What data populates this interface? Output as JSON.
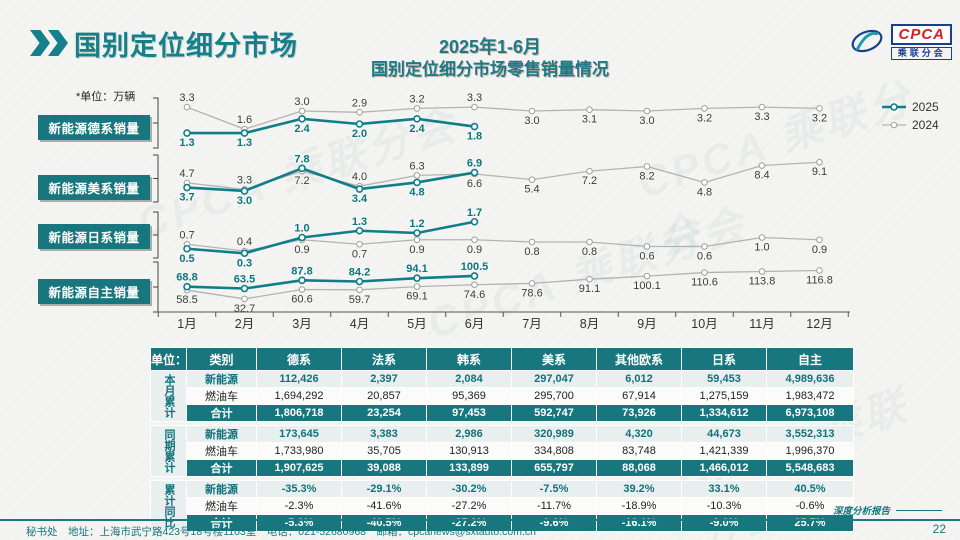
{
  "header": {
    "title": "国别定位细分市场",
    "subtitle_line1": "2025年1-6月",
    "subtitle_line2": "国别定位细分市场零售销量情况",
    "logo": {
      "cpca": "CPCA",
      "sub": "乘联分会"
    }
  },
  "unit_note": "*单位：万辆",
  "watermark": "CPCA 乘联分会",
  "legend": {
    "s2025": "2025",
    "s2024": "2024"
  },
  "colors": {
    "teal": "#17767e",
    "teal_line": "#0f7e88",
    "teal_label": "#0d7680",
    "gray_line": "#b3b3b3",
    "gray_label": "#3c3c3c",
    "axis": "#555555",
    "header_yellow": "#ffd34d"
  },
  "chart_data": {
    "type": "line",
    "x_labels": [
      "1月",
      "2月",
      "3月",
      "4月",
      "5月",
      "6月",
      "7月",
      "8月",
      "9月",
      "10月",
      "11月",
      "12月"
    ],
    "legend": [
      "2025",
      "2024"
    ],
    "rows": [
      {
        "label": "新能源德系销量",
        "ylim": [
          0,
          4
        ],
        "series": [
          {
            "name": "2025",
            "values": [
              1.3,
              1.3,
              2.4,
              2.0,
              2.4,
              1.8
            ]
          },
          {
            "name": "2024",
            "values": [
              3.3,
              1.6,
              3.0,
              2.9,
              3.2,
              3.3,
              3.0,
              3.1,
              3.0,
              3.2,
              3.3,
              3.2
            ]
          }
        ]
      },
      {
        "label": "新能源美系销量",
        "ylim": [
          0,
          10
        ],
        "series": [
          {
            "name": "2025",
            "values": [
              3.7,
              3.0,
              7.8,
              3.4,
              4.8,
              6.9
            ]
          },
          {
            "name": "2024",
            "values": [
              4.7,
              3.3,
              7.2,
              4.0,
              6.3,
              6.6,
              5.4,
              7.2,
              8.2,
              4.8,
              8.4,
              9.1
            ]
          }
        ]
      },
      {
        "label": "新能源日系销量",
        "ylim": [
          0,
          2
        ],
        "series": [
          {
            "name": "2025",
            "values": [
              0.5,
              0.3,
              1.0,
              1.3,
              1.2,
              1.7
            ]
          },
          {
            "name": "2024",
            "values": [
              0.7,
              0.4,
              0.9,
              0.7,
              0.9,
              0.9,
              0.8,
              0.8,
              0.6,
              0.6,
              1.0,
              0.9
            ]
          }
        ]
      },
      {
        "label": "新能源自主销量",
        "ylim": [
          0,
          130
        ],
        "series": [
          {
            "name": "2025",
            "values": [
              68.8,
              63.5,
              87.8,
              84.2,
              94.1,
              100.5
            ]
          },
          {
            "name": "2024",
            "values": [
              58.5,
              32.7,
              60.6,
              59.7,
              69.1,
              74.6,
              78.6,
              91.1,
              100.1,
              110.6,
              113.8,
              116.8
            ]
          }
        ]
      }
    ]
  },
  "table": {
    "unit_header": "单位：辆",
    "category_header": "类别",
    "columns": [
      "德系",
      "法系",
      "韩系",
      "美系",
      "其他欧系",
      "日系",
      "自主"
    ],
    "groups": [
      {
        "label": "本月累计",
        "rows": [
          {
            "name": "新能源",
            "type": "nev",
            "values": [
              "112,426",
              "2,397",
              "2,084",
              "297,047",
              "6,012",
              "59,453",
              "4,989,636"
            ]
          },
          {
            "name": "燃油车",
            "type": "ice",
            "values": [
              "1,694,292",
              "20,857",
              "95,369",
              "295,700",
              "67,914",
              "1,275,159",
              "1,983,472"
            ]
          },
          {
            "name": "合计",
            "type": "total",
            "values": [
              "1,806,718",
              "23,254",
              "97,453",
              "592,747",
              "73,926",
              "1,334,612",
              "6,973,108"
            ]
          }
        ]
      },
      {
        "label": "同期累计",
        "rows": [
          {
            "name": "新能源",
            "type": "nev",
            "values": [
              "173,645",
              "3,383",
              "2,986",
              "320,989",
              "4,320",
              "44,673",
              "3,552,313"
            ]
          },
          {
            "name": "燃油车",
            "type": "ice",
            "values": [
              "1,733,980",
              "35,705",
              "130,913",
              "334,808",
              "83,748",
              "1,421,339",
              "1,996,370"
            ]
          },
          {
            "name": "合计",
            "type": "total",
            "values": [
              "1,907,625",
              "39,088",
              "133,899",
              "655,797",
              "88,068",
              "1,466,012",
              "5,548,683"
            ]
          }
        ]
      },
      {
        "label": "累计同比",
        "rows": [
          {
            "name": "新能源",
            "type": "nev",
            "values": [
              "-35.3%",
              "-29.1%",
              "-30.2%",
              "-7.5%",
              "39.2%",
              "33.1%",
              "40.5%"
            ]
          },
          {
            "name": "燃油车",
            "type": "ice",
            "values": [
              "-2.3%",
              "-41.6%",
              "-27.2%",
              "-11.7%",
              "-18.9%",
              "-10.3%",
              "-0.6%"
            ]
          },
          {
            "name": "合计",
            "type": "total",
            "values": [
              "-5.3%",
              "-40.5%",
              "-27.2%",
              "-9.6%",
              "-16.1%",
              "-9.0%",
              "25.7%"
            ]
          }
        ]
      }
    ]
  },
  "footer": {
    "left": "秘书处　地址：上海市武宁路423号18号楼1103室　电话：021-52680968　邮箱：cpcanews@sxtauto.com.cn",
    "report_tag": "深度分析报告",
    "page": "22"
  }
}
